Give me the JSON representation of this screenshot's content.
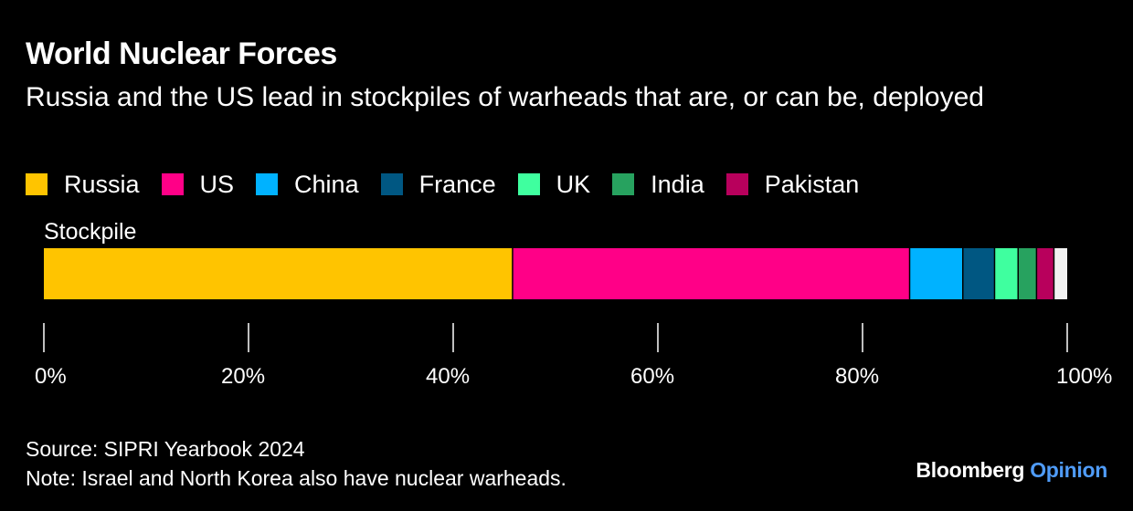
{
  "header": {
    "title": "World Nuclear Forces",
    "subtitle": "Russia and the US lead in stockpiles of warheads that are, or can be, deployed"
  },
  "legend": [
    {
      "label": "Russia",
      "color": "#FFC400"
    },
    {
      "label": "US",
      "color": "#FF0087"
    },
    {
      "label": "China",
      "color": "#00B2FF"
    },
    {
      "label": "France",
      "color": "#005782"
    },
    {
      "label": "UK",
      "color": "#3FFF9F"
    },
    {
      "label": "India",
      "color": "#27A25F"
    },
    {
      "label": "Pakistan",
      "color": "#B8005C"
    }
  ],
  "chart_data": {
    "type": "bar",
    "orientation": "horizontal",
    "stacked": true,
    "percent_scale": true,
    "categories": [
      "Stockpile"
    ],
    "series": [
      {
        "name": "Russia",
        "values": [
          45.8
        ],
        "color": "#FFC400"
      },
      {
        "name": "US",
        "values": [
          38.8
        ],
        "color": "#FF0087"
      },
      {
        "name": "China",
        "values": [
          5.2
        ],
        "color": "#00B2FF"
      },
      {
        "name": "France",
        "values": [
          3.1
        ],
        "color": "#005782"
      },
      {
        "name": "UK",
        "values": [
          2.3
        ],
        "color": "#3FFF9F"
      },
      {
        "name": "India",
        "values": [
          1.8
        ],
        "color": "#27A25F"
      },
      {
        "name": "Pakistan",
        "values": [
          1.7
        ],
        "color": "#B8005C"
      },
      {
        "values": [
          1.3
        ],
        "color": "#F2F2F2"
      }
    ],
    "xlim": [
      0,
      100
    ],
    "x_ticks": [
      "0%",
      "20%",
      "40%",
      "60%",
      "80%",
      "100%"
    ],
    "grid": false,
    "legend_position": "top"
  },
  "footer": {
    "source": "Source: SIPRI Yearbook 2024",
    "note": "Note: Israel and North Korea also have nuclear warheads.",
    "brand_name": "Bloomberg",
    "brand_accent": "Opinion"
  }
}
